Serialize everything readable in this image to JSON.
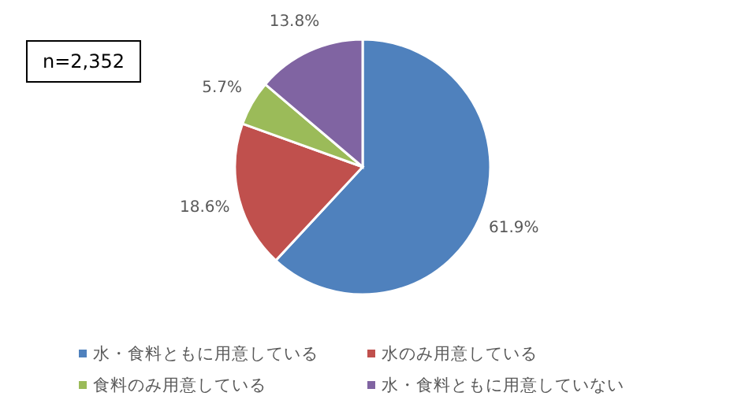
{
  "chart_data": {
    "type": "pie",
    "categories": [
      "水・食料ともに用意している",
      "水のみ用意している",
      "食料のみ用意している",
      "水・食料ともに用意していない"
    ],
    "values": [
      61.9,
      18.6,
      5.7,
      13.8
    ],
    "colors": [
      "#4f81bd",
      "#c0504d",
      "#9bbb59",
      "#8064a2"
    ],
    "value_labels": [
      "61.9%",
      "18.6%",
      "5.7%",
      "13.8%"
    ],
    "annotations": [
      "n=2,352"
    ],
    "legend": "bottom"
  }
}
